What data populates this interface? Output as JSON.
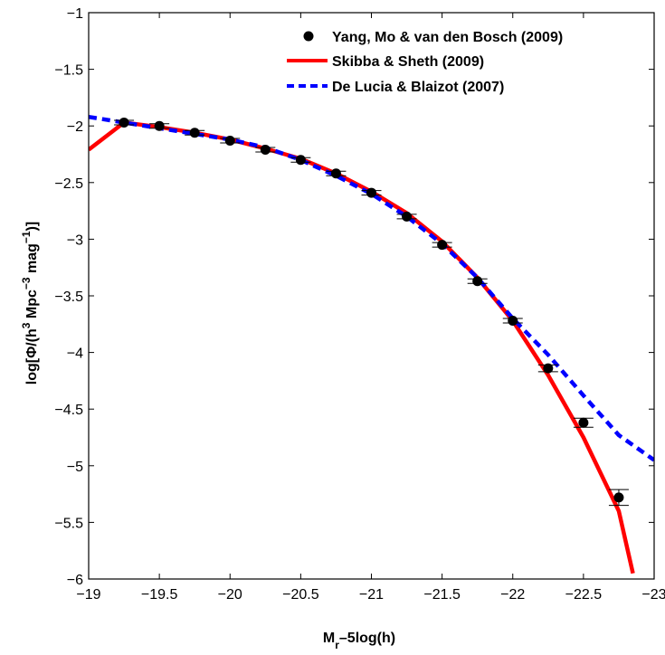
{
  "chart_data": {
    "type": "line",
    "title": "",
    "xlabel": {
      "main": "M",
      "sub": "r",
      "rest": "–5log(h)"
    },
    "ylabel": {
      "p1": "log[Φ/(h",
      "s1": "3",
      "p2": " Mpc",
      "s2": "−3",
      "p3": " mag",
      "s3": "−1",
      "p4": ")]"
    },
    "xlim": [
      -19,
      -23
    ],
    "ylim": [
      -6,
      -1
    ],
    "x_reversed": true,
    "x_ticks": [
      -19,
      -19.5,
      -20,
      -20.5,
      -21,
      -21.5,
      -22,
      -22.5,
      -23
    ],
    "x_tick_labels": [
      "−19",
      "−19.5",
      "−20",
      "−20.5",
      "−21",
      "−21.5",
      "−22",
      "−22.5",
      "−23"
    ],
    "y_ticks": [
      -1,
      -1.5,
      -2,
      -2.5,
      -3,
      -3.5,
      -4,
      -4.5,
      -5,
      -5.5,
      -6
    ],
    "y_tick_labels": [
      "−1",
      "−1.5",
      "−2",
      "−2.5",
      "−3",
      "−3.5",
      "−4",
      "−4.5",
      "−5",
      "−5.5",
      "−6"
    ],
    "grid": false,
    "legend_position": "top-right",
    "series": [
      {
        "name": "Yang, Mo & van den Bosch (2009)",
        "kind": "points_with_errorbars",
        "color": "#000000",
        "x": [
          -19.25,
          -19.5,
          -19.75,
          -20.0,
          -20.25,
          -20.5,
          -20.75,
          -21.0,
          -21.25,
          -21.5,
          -21.75,
          -22.0,
          -22.25,
          -22.5,
          -22.75
        ],
        "y": [
          -1.97,
          -2.0,
          -2.06,
          -2.13,
          -2.21,
          -2.3,
          -2.42,
          -2.59,
          -2.8,
          -3.05,
          -3.37,
          -3.72,
          -4.14,
          -4.62,
          -5.28
        ],
        "yerr": [
          0.02,
          0.02,
          0.02,
          0.02,
          0.02,
          0.02,
          0.02,
          0.02,
          0.02,
          0.02,
          0.02,
          0.02,
          0.03,
          0.04,
          0.07
        ]
      },
      {
        "name": "Skibba & Sheth (2009)",
        "kind": "line",
        "color": "#ff0000",
        "dash": "solid",
        "x": [
          -19.0,
          -19.25,
          -19.5,
          -19.75,
          -20.0,
          -20.25,
          -20.5,
          -20.75,
          -21.0,
          -21.25,
          -21.5,
          -21.75,
          -22.0,
          -22.25,
          -22.5,
          -22.75,
          -22.85
        ],
        "y": [
          -2.21,
          -1.97,
          -2.01,
          -2.06,
          -2.12,
          -2.2,
          -2.29,
          -2.42,
          -2.58,
          -2.77,
          -3.02,
          -3.34,
          -3.72,
          -4.2,
          -4.75,
          -5.4,
          -5.95
        ]
      },
      {
        "name": "De Lucia & Blaizot (2007)",
        "kind": "line",
        "color": "#0000ff",
        "dash": "dashed",
        "x": [
          -19.0,
          -19.25,
          -19.5,
          -19.75,
          -20.0,
          -20.25,
          -20.5,
          -20.75,
          -21.0,
          -21.25,
          -21.5,
          -21.75,
          -22.0,
          -22.25,
          -22.5,
          -22.75,
          -23.0
        ],
        "y": [
          -1.92,
          -1.97,
          -2.02,
          -2.07,
          -2.12,
          -2.19,
          -2.3,
          -2.44,
          -2.6,
          -2.8,
          -3.04,
          -3.34,
          -3.7,
          -4.02,
          -4.38,
          -4.73,
          -4.95
        ]
      }
    ]
  }
}
